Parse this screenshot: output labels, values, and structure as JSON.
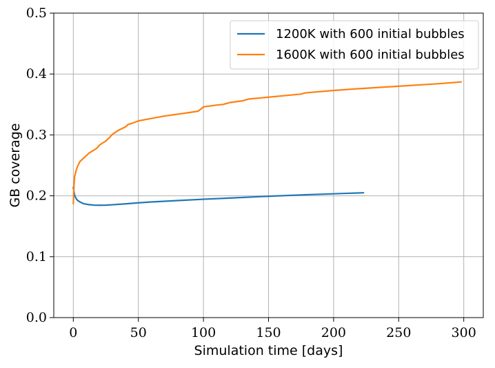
{
  "chart_data": {
    "type": "line",
    "title": "",
    "xlabel": "Simulation time [days]",
    "ylabel": "GB coverage",
    "xlim": [
      -15,
      315
    ],
    "ylim": [
      0,
      0.5
    ],
    "xticks": [
      0,
      50,
      100,
      150,
      200,
      250,
      300
    ],
    "xtick_labels": [
      "0",
      "50",
      "100",
      "150",
      "200",
      "250",
      "300"
    ],
    "yticks": [
      0.0,
      0.1,
      0.2,
      0.3,
      0.4,
      0.5
    ],
    "ytick_labels": [
      "0.0",
      "0.1",
      "0.2",
      "0.3",
      "0.4",
      "0.5"
    ],
    "grid": true,
    "legend_position": "top-right",
    "series": [
      {
        "name": "1200K with 600 initial bubbles",
        "color": "#1f77b4",
        "x": [
          0,
          0.5,
          1,
          2,
          3,
          5,
          8,
          12,
          16,
          20,
          25,
          30,
          40,
          50,
          60,
          80,
          100,
          120,
          150,
          180,
          200,
          223
        ],
        "y": [
          0.214,
          0.207,
          0.201,
          0.196,
          0.193,
          0.19,
          0.187,
          0.1855,
          0.1847,
          0.1845,
          0.1847,
          0.1853,
          0.1868,
          0.1885,
          0.1899,
          0.1922,
          0.1944,
          0.1963,
          0.1993,
          0.2019,
          0.2033,
          0.205
        ]
      },
      {
        "name": "1600K with 600 initial bubbles",
        "color": "#ff7f0e",
        "x": [
          0,
          0.5,
          1,
          2,
          3,
          5,
          7,
          10,
          12,
          15,
          18,
          20,
          22,
          25,
          28,
          30,
          35,
          40,
          42,
          45,
          50,
          55,
          60,
          70,
          80,
          90,
          96,
          100,
          110,
          115,
          120,
          130,
          135,
          150,
          160,
          175,
          178,
          200,
          220,
          250,
          280,
          298
        ],
        "y": [
          0.187,
          0.215,
          0.232,
          0.24,
          0.247,
          0.256,
          0.26,
          0.266,
          0.27,
          0.274,
          0.278,
          0.283,
          0.286,
          0.29,
          0.296,
          0.301,
          0.308,
          0.313,
          0.317,
          0.319,
          0.323,
          0.325,
          0.327,
          0.331,
          0.334,
          0.337,
          0.339,
          0.346,
          0.349,
          0.35,
          0.353,
          0.356,
          0.359,
          0.362,
          0.364,
          0.367,
          0.369,
          0.373,
          0.376,
          0.38,
          0.384,
          0.387
        ]
      }
    ]
  }
}
